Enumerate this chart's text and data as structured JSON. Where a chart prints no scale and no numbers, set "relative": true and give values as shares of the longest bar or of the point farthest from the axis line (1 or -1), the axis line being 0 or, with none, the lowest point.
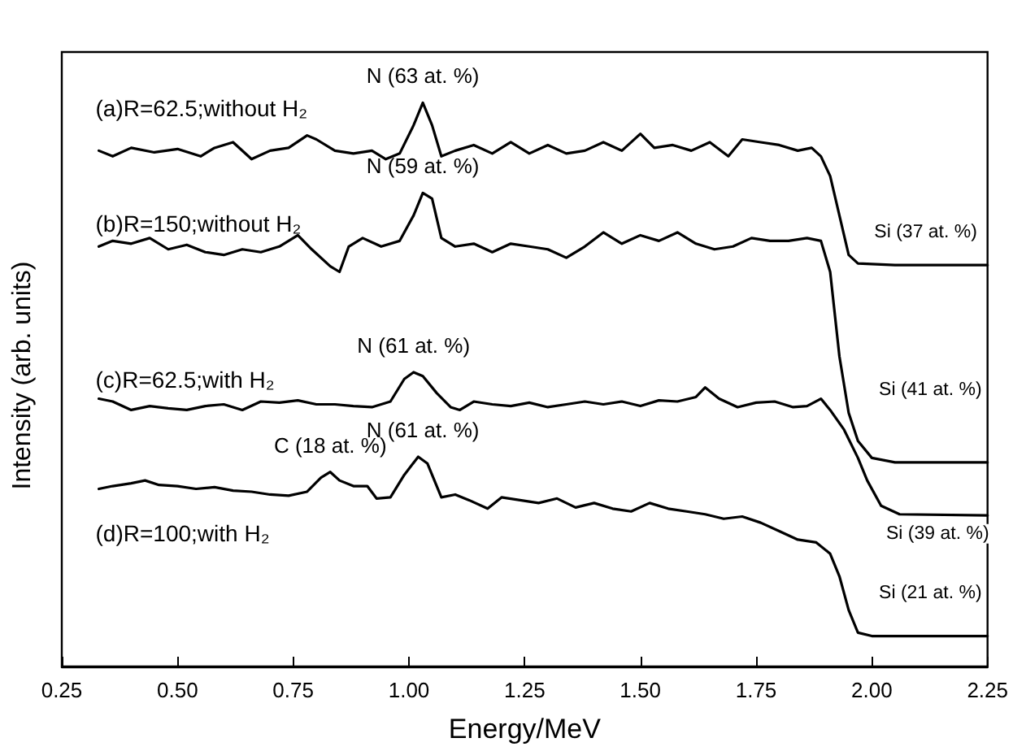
{
  "chart_data": {
    "type": "line",
    "relative": true,
    "xlabel": "Energy/MeV",
    "ylabel": "Intensity (arb. units)",
    "xlim": [
      0.25,
      2.25
    ],
    "xticks": [
      {
        "value": 0.25,
        "label": "0.25"
      },
      {
        "value": 0.5,
        "label": "0.50"
      },
      {
        "value": 0.75,
        "label": "0.75"
      },
      {
        "value": 1.0,
        "label": "1.00"
      },
      {
        "value": 1.25,
        "label": "1.25"
      },
      {
        "value": 1.5,
        "label": "1.50"
      },
      {
        "value": 1.75,
        "label": "1.75"
      },
      {
        "value": 2.0,
        "label": "2.00"
      },
      {
        "value": 2.25,
        "label": "2.25"
      }
    ],
    "grid": false,
    "legend": false,
    "marker": "none",
    "line_style": "solid",
    "series": [
      {
        "name": "(a)R=62.5;without H₂",
        "color": "#000000",
        "x": [
          0.33,
          0.36,
          0.4,
          0.45,
          0.5,
          0.55,
          0.58,
          0.62,
          0.66,
          0.7,
          0.74,
          0.78,
          0.8,
          0.84,
          0.88,
          0.92,
          0.95,
          0.98,
          1.01,
          1.03,
          1.05,
          1.07,
          1.1,
          1.14,
          1.18,
          1.22,
          1.26,
          1.3,
          1.34,
          1.38,
          1.42,
          1.46,
          1.5,
          1.53,
          1.57,
          1.61,
          1.65,
          1.69,
          1.72,
          1.76,
          1.8,
          1.84,
          1.87,
          1.89,
          1.91,
          1.93,
          1.95,
          1.97,
          2.05,
          2.25
        ],
        "values": [
          0.915,
          0.905,
          0.92,
          0.912,
          0.918,
          0.905,
          0.92,
          0.93,
          0.9,
          0.915,
          0.92,
          0.942,
          0.935,
          0.915,
          0.91,
          0.915,
          0.9,
          0.91,
          0.96,
          1.0,
          0.96,
          0.905,
          0.915,
          0.925,
          0.91,
          0.93,
          0.91,
          0.925,
          0.91,
          0.915,
          0.93,
          0.915,
          0.945,
          0.92,
          0.925,
          0.915,
          0.93,
          0.905,
          0.935,
          0.93,
          0.925,
          0.915,
          0.92,
          0.905,
          0.87,
          0.8,
          0.73,
          0.715,
          0.712,
          0.712
        ]
      },
      {
        "name": "(b)R=150;without H₂",
        "color": "#000000",
        "x": [
          0.33,
          0.36,
          0.4,
          0.44,
          0.48,
          0.52,
          0.56,
          0.6,
          0.64,
          0.68,
          0.72,
          0.76,
          0.79,
          0.83,
          0.85,
          0.87,
          0.9,
          0.94,
          0.98,
          1.01,
          1.03,
          1.05,
          1.07,
          1.1,
          1.14,
          1.18,
          1.22,
          1.26,
          1.3,
          1.34,
          1.38,
          1.42,
          1.46,
          1.5,
          1.54,
          1.58,
          1.62,
          1.66,
          1.7,
          1.74,
          1.78,
          1.82,
          1.86,
          1.89,
          1.91,
          1.93,
          1.95,
          1.97,
          2.0,
          2.05,
          2.25
        ],
        "values": [
          0.745,
          0.755,
          0.75,
          0.76,
          0.74,
          0.748,
          0.735,
          0.73,
          0.74,
          0.735,
          0.745,
          0.765,
          0.74,
          0.71,
          0.7,
          0.745,
          0.76,
          0.745,
          0.755,
          0.8,
          0.84,
          0.83,
          0.76,
          0.745,
          0.75,
          0.735,
          0.75,
          0.745,
          0.74,
          0.725,
          0.745,
          0.77,
          0.75,
          0.765,
          0.755,
          0.77,
          0.75,
          0.74,
          0.745,
          0.76,
          0.755,
          0.755,
          0.76,
          0.755,
          0.7,
          0.55,
          0.45,
          0.4,
          0.37,
          0.362,
          0.362
        ]
      },
      {
        "name": "(c)R=62.5;with H₂",
        "color": "#000000",
        "x": [
          0.33,
          0.36,
          0.4,
          0.44,
          0.48,
          0.52,
          0.56,
          0.6,
          0.64,
          0.68,
          0.72,
          0.76,
          0.8,
          0.84,
          0.88,
          0.92,
          0.96,
          0.99,
          1.01,
          1.03,
          1.06,
          1.09,
          1.11,
          1.14,
          1.18,
          1.22,
          1.26,
          1.3,
          1.34,
          1.38,
          1.42,
          1.46,
          1.5,
          1.54,
          1.58,
          1.62,
          1.64,
          1.67,
          1.71,
          1.75,
          1.79,
          1.83,
          1.86,
          1.89,
          1.91,
          1.94,
          1.97,
          1.99,
          2.02,
          2.06,
          2.25
        ],
        "values": [
          0.475,
          0.47,
          0.455,
          0.462,
          0.458,
          0.455,
          0.462,
          0.465,
          0.455,
          0.47,
          0.468,
          0.472,
          0.465,
          0.465,
          0.462,
          0.46,
          0.47,
          0.51,
          0.522,
          0.515,
          0.485,
          0.46,
          0.455,
          0.47,
          0.465,
          0.462,
          0.468,
          0.46,
          0.465,
          0.47,
          0.465,
          0.47,
          0.462,
          0.472,
          0.47,
          0.478,
          0.495,
          0.475,
          0.46,
          0.468,
          0.47,
          0.46,
          0.462,
          0.475,
          0.455,
          0.42,
          0.37,
          0.33,
          0.285,
          0.27,
          0.268
        ]
      },
      {
        "name": "(d)R=100;with H₂",
        "color": "#000000",
        "x": [
          0.33,
          0.36,
          0.4,
          0.43,
          0.46,
          0.5,
          0.54,
          0.58,
          0.62,
          0.66,
          0.7,
          0.74,
          0.78,
          0.81,
          0.83,
          0.85,
          0.88,
          0.91,
          0.93,
          0.96,
          0.99,
          1.02,
          1.04,
          1.07,
          1.1,
          1.13,
          1.17,
          1.2,
          1.24,
          1.28,
          1.32,
          1.36,
          1.4,
          1.44,
          1.48,
          1.52,
          1.56,
          1.6,
          1.64,
          1.68,
          1.72,
          1.76,
          1.8,
          1.84,
          1.88,
          1.91,
          1.93,
          1.95,
          1.97,
          2.0,
          2.25
        ],
        "values": [
          0.315,
          0.32,
          0.325,
          0.33,
          0.322,
          0.32,
          0.315,
          0.318,
          0.312,
          0.31,
          0.305,
          0.303,
          0.31,
          0.335,
          0.345,
          0.33,
          0.32,
          0.32,
          0.298,
          0.3,
          0.34,
          0.372,
          0.36,
          0.3,
          0.305,
          0.295,
          0.28,
          0.3,
          0.295,
          0.29,
          0.298,
          0.282,
          0.29,
          0.28,
          0.275,
          0.29,
          0.28,
          0.275,
          0.27,
          0.262,
          0.266,
          0.255,
          0.24,
          0.225,
          0.22,
          0.2,
          0.16,
          0.1,
          0.06,
          0.054,
          0.054
        ]
      }
    ],
    "annotations": [
      {
        "text": "N (63 at. %)",
        "x": 1.03,
        "y": 1.0
      },
      {
        "text": "N (59 at. %)",
        "x": 1.03,
        "y": 0.84
      },
      {
        "text": "N (61 at. %)",
        "x": 1.01,
        "y": 0.522
      },
      {
        "text": "C (18 at. %)",
        "x": 0.83,
        "y": 0.345
      },
      {
        "text": "N (61 at. %)",
        "x": 1.03,
        "y": 0.372
      },
      {
        "text": "Si (37 at. %)",
        "x": 1.935,
        "y": 0.77
      },
      {
        "text": "Si (41 at. %)",
        "x": 1.945,
        "y": 0.49
      },
      {
        "text": "Si (39 at. %)",
        "x": 2.06,
        "y": 0.27
      },
      {
        "text": "Si (21 at. %)",
        "x": 1.945,
        "y": 0.13
      }
    ]
  }
}
